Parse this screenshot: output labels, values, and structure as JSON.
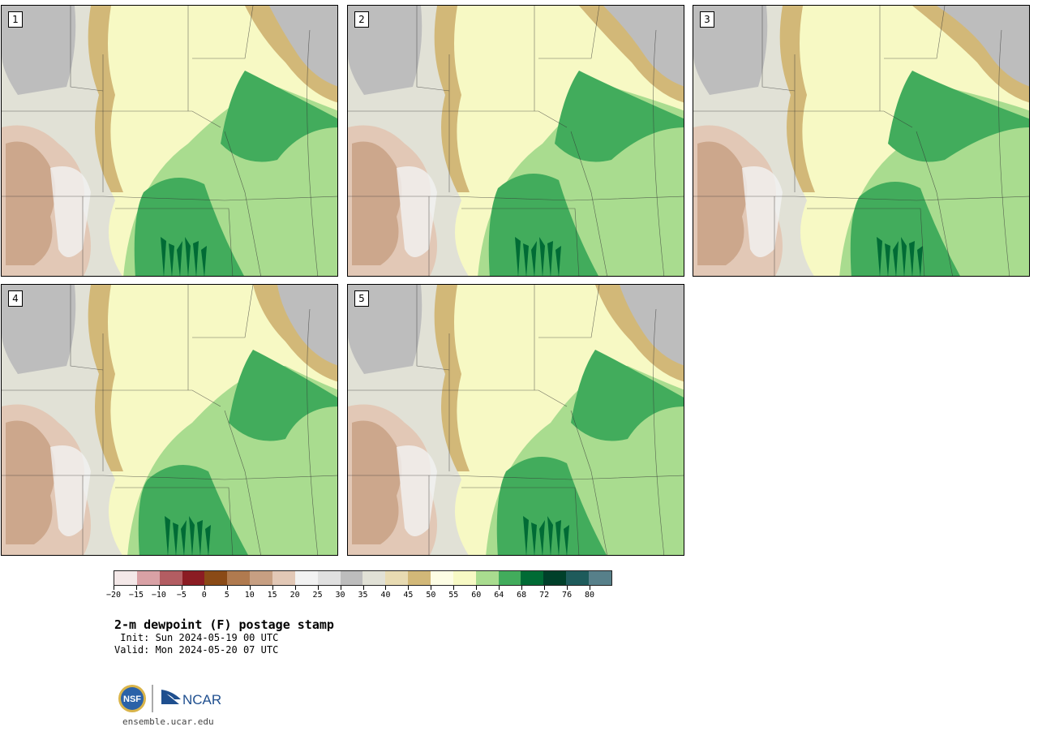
{
  "panels": [
    {
      "label": "1"
    },
    {
      "label": "2"
    },
    {
      "label": "3"
    },
    {
      "label": "4"
    },
    {
      "label": "5"
    }
  ],
  "colorbar": {
    "colors": [
      "#f4e8e8",
      "#d9a1a5",
      "#b35d62",
      "#8b1c23",
      "#8a4a16",
      "#b07a4f",
      "#c79f82",
      "#e2c8b6",
      "#f2f2f2",
      "#e0e0e0",
      "#bdbdbd",
      "#e1e1d6",
      "#e8dbb2",
      "#d2b878",
      "#fdfde4",
      "#f7f9c4",
      "#a9dc8f",
      "#42ac5c",
      "#006b35",
      "#00402a",
      "#1e5b5b",
      "#57808a"
    ],
    "ticks": [
      "−20",
      "−15",
      "−10",
      "−5",
      "0",
      "5",
      "10",
      "15",
      "20",
      "25",
      "30",
      "35",
      "40",
      "45",
      "50",
      "55",
      "60",
      "64",
      "68",
      "72",
      "76",
      "80"
    ]
  },
  "title": "2-m dewpoint (F) postage stamp",
  "init_line": " Init: Sun 2024-05-19 00 UTC",
  "valid_line": "Valid: Mon 2024-05-20 07 UTC",
  "logo": {
    "nsf": "NSF",
    "ncar": "NCAR"
  },
  "site": "ensemble.ucar.edu"
}
